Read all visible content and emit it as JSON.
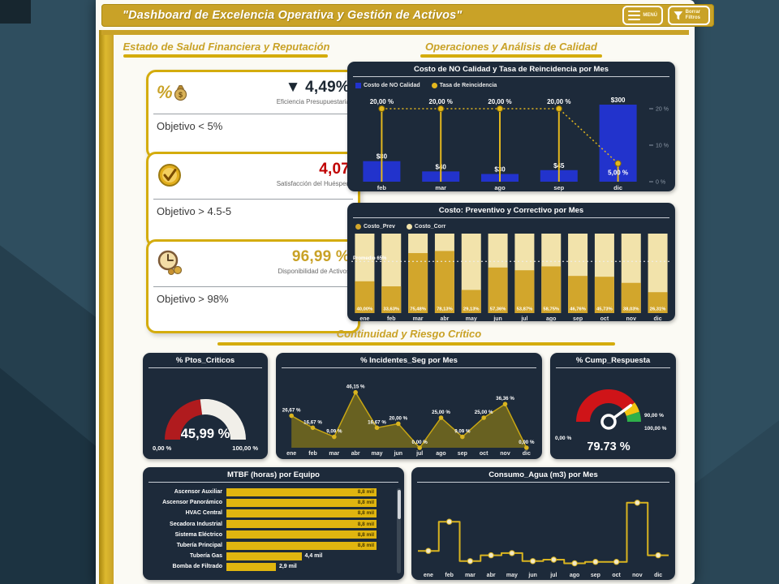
{
  "header": {
    "title": "\"Dashboard de Excelencia Operativa y Gestión de Activos\"",
    "menu_button": "MENÚ",
    "clear_filters_button": "Borrar Filtros"
  },
  "sections": {
    "financial_title": "Estado de Salud Financiera y Reputación",
    "operations_title": "Operaciones y Análisis de Calidad",
    "continuity_title": "Continuidad y Riesgo Crítico"
  },
  "kpis": [
    {
      "icon": "percent-money",
      "value": "▼ 4,49%",
      "value_color": "#1c2732",
      "label": "Eficiencia Presupuestaria",
      "objective": "Objetivo < 5%"
    },
    {
      "icon": "gold-check-medal",
      "value": "4,07",
      "value_color": "#c00000",
      "label": "Satisfacción del Huésped",
      "objective": "Objetivo > 4.5-5"
    },
    {
      "icon": "clock-coins",
      "value": "96,99 %",
      "value_color": "#c9a227",
      "label": "Disponibilidad de Activos",
      "objective": "Objetivo > 98%"
    }
  ],
  "chart_data": [
    {
      "type": "combo-bar-line",
      "title": "Costo de NO Calidad y Tasa de Reincidencia por Mes",
      "categories": [
        "feb",
        "mar",
        "ago",
        "sep",
        "dic"
      ],
      "series": [
        {
          "name": "Costo de NO Calidad",
          "kind": "bar",
          "color": "#2233cc",
          "values": [
            80,
            40,
            30,
            45,
            300
          ],
          "labels": [
            "$80",
            "$40",
            "$30",
            "$45",
            "$300"
          ]
        },
        {
          "name": "Tasa de Reincidencia",
          "kind": "line",
          "color": "#e3b71e",
          "values": [
            20,
            20,
            20,
            20,
            5
          ],
          "labels": [
            "20,00 %",
            "20,00 %",
            "20,00 %",
            "20,00 %",
            "5,00 %"
          ]
        }
      ],
      "ylim": [
        0,
        300
      ],
      "y2lim": [
        0,
        22
      ],
      "y2_ticks": [
        {
          "label": "20 %",
          "value": 20
        },
        {
          "label": "10 %",
          "value": 10
        },
        {
          "label": "0 %",
          "value": 0
        }
      ],
      "legend_position": "top-left"
    },
    {
      "type": "stacked-bar-100",
      "title": "Costo: Preventivo y Correctivo por Mes",
      "categories": [
        "ene",
        "feb",
        "mar",
        "abr",
        "may",
        "jun",
        "jul",
        "ago",
        "sep",
        "oct",
        "nov",
        "dic"
      ],
      "series": [
        {
          "name": "Costo_Prev",
          "color": "#d2a62c",
          "values": [
            40.0,
            33.63,
            75.48,
            78.13,
            29.13,
            57.36,
            53.87,
            58.75,
            46.76,
            45.73,
            38.03,
            26.31
          ]
        },
        {
          "name": "Costo_Corr",
          "color": "#f2e3ab"
        }
      ],
      "labels": [
        "40,00%",
        "33,63%",
        "75,48%",
        "78,13%",
        "29,13%",
        "57,36%",
        "53,87%",
        "58,75%",
        "46,76%",
        "45,73%",
        "38,03%",
        "26,31%"
      ],
      "avg_line": {
        "label": "Promedio 65%",
        "value": 65
      },
      "legend_position": "top-left"
    },
    {
      "type": "gauge",
      "title": "% Ptos_Criticos",
      "value": 45.99,
      "value_label": "45,99 %",
      "min_label": "0,00 %",
      "max_label": "100,00 %",
      "fill_color": "#b01b1e",
      "track_color": "#f1efe9"
    },
    {
      "type": "area",
      "title": "% Incidentes_Seg por Mes",
      "categories": [
        "ene",
        "feb",
        "mar",
        "abr",
        "may",
        "jun",
        "jul",
        "ago",
        "sep",
        "oct",
        "nov",
        "dic"
      ],
      "values": [
        26.67,
        16.67,
        9.09,
        46.15,
        16.67,
        20.0,
        0.0,
        25.0,
        9.09,
        25.0,
        36.36,
        0.0
      ],
      "labels": [
        "26,67 %",
        "16,67 %",
        "9,09 %",
        "46,15 %",
        "16,67 %",
        "20,00 %",
        "0,00 %",
        "25,00 %",
        "9,09 %",
        "25,00 %",
        "36,36 %",
        "0,00 %"
      ],
      "ylim": [
        0,
        50
      ],
      "fill_color": "#6f661f",
      "line_color": "#c8a614"
    },
    {
      "type": "speedometer",
      "title": "% Cump_Respuesta",
      "value": 79.73,
      "value_label": "79.73 %",
      "min_label": "0,00 %",
      "band_labels": [
        "90,00 %",
        "100,00 %"
      ],
      "bands": [
        {
          "to": 79.73,
          "color": "#cf1418"
        },
        {
          "to": 90,
          "color": "#f2c410"
        },
        {
          "to": 100,
          "color": "#2eb04a"
        }
      ]
    },
    {
      "type": "hbar",
      "title": "MTBF (horas) por Equipo",
      "categories": [
        "Ascensor Auxiliar",
        "Ascensor Panorámico",
        "HVAC Central",
        "Secadora Industrial",
        "Sistema Eléctrico",
        "Tubería Principal",
        "Tubería Gas",
        "Bomba de Filtrado"
      ],
      "values": [
        8.8,
        8.8,
        8.8,
        8.8,
        8.8,
        8.8,
        4.4,
        2.9
      ],
      "labels": [
        "8,8 mil",
        "8,8 mil",
        "8,8 mil",
        "8,8 mil",
        "8,8 mil",
        "8,8 mil",
        "4,4 mil",
        "2,9 mil"
      ],
      "xlim": [
        0,
        8.8
      ],
      "bar_color": "#e0b50f"
    },
    {
      "type": "step-line",
      "title": "Consumo_Agua (m3) por Mes",
      "categories": [
        "ene",
        "feb",
        "mar",
        "abr",
        "may",
        "jun",
        "jul",
        "ago",
        "sep",
        "oct",
        "nov",
        "dic"
      ],
      "values": [
        22,
        62,
        8,
        16,
        19,
        8,
        10,
        5,
        7,
        7,
        88,
        16
      ],
      "ylim": [
        0,
        100
      ],
      "line_color": "#d9b420",
      "marker_color": "#f3e9c6"
    }
  ]
}
